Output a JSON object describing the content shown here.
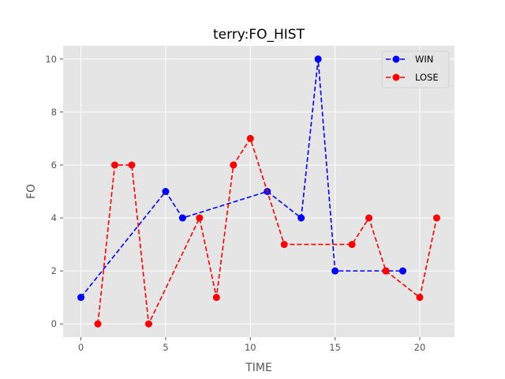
{
  "chart_data": {
    "type": "line",
    "title": "terry:FO_HIST",
    "xlabel": "TIME",
    "ylabel": "FO",
    "xlim": [
      -1.05,
      22.05
    ],
    "ylim": [
      -0.5,
      10.5
    ],
    "xticks": [
      0,
      5,
      10,
      15,
      20
    ],
    "yticks": [
      0,
      2,
      4,
      6,
      8,
      10
    ],
    "grid": true,
    "legend_position": "top-right",
    "series": [
      {
        "name": "WIN",
        "color": "#0000ff",
        "linestyle": "dashed",
        "marker": "circle",
        "x": [
          0,
          5,
          6,
          11,
          13,
          14,
          15,
          18,
          19
        ],
        "y": [
          1,
          5,
          4,
          5,
          4,
          10,
          2,
          2,
          2
        ]
      },
      {
        "name": "LOSE",
        "color": "#ff0000",
        "linestyle": "dashed",
        "marker": "circle",
        "x": [
          1,
          2,
          3,
          4,
          7,
          8,
          9,
          10,
          12,
          16,
          17,
          18,
          20,
          21
        ],
        "y": [
          0,
          6,
          6,
          0,
          4,
          1,
          6,
          7,
          3,
          3,
          4,
          2,
          1,
          4
        ]
      }
    ]
  }
}
